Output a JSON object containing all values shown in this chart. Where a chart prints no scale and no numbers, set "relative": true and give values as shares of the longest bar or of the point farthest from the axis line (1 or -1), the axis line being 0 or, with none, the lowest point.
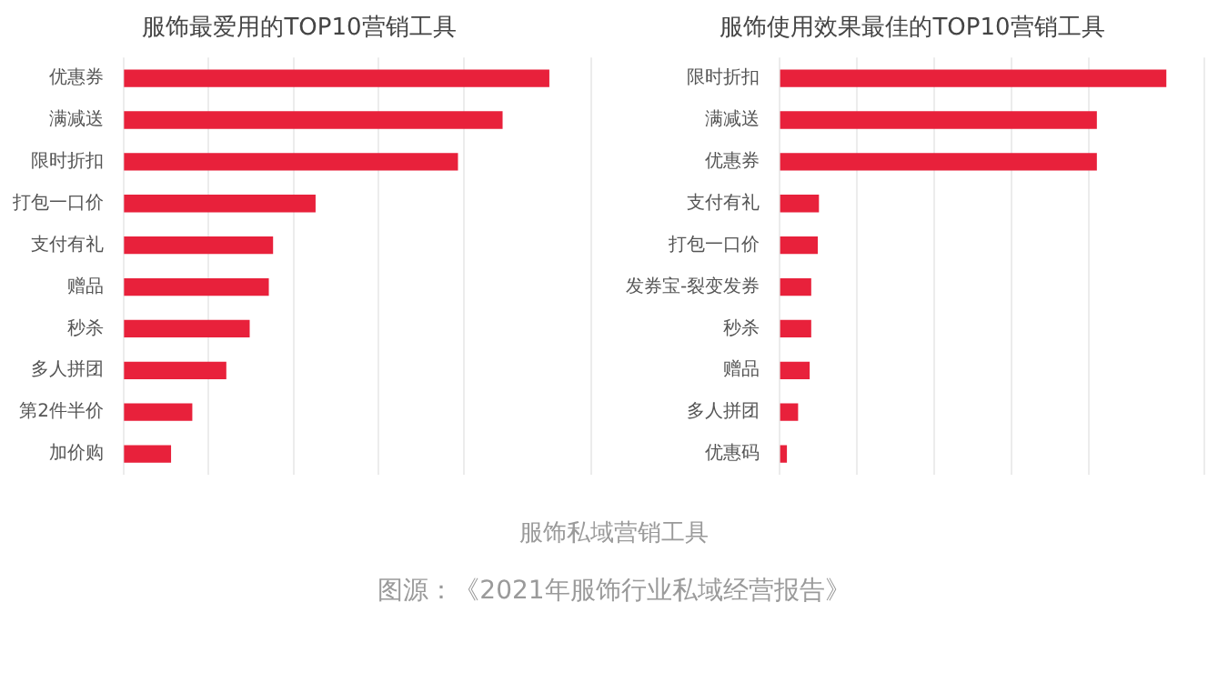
{
  "chart_data": [
    {
      "type": "bar",
      "orientation": "horizontal",
      "relative": true,
      "grid": "x",
      "title": "服饰最爱用的TOP10营销工具",
      "categories": [
        "优惠券",
        "满减送",
        "限时折扣",
        "打包一口价",
        "支付有礼",
        "赠品",
        "秒杀",
        "多人拼团",
        "第2件半价",
        "加价购"
      ],
      "values": [
        1,
        0.89,
        0.785,
        0.45,
        0.35,
        0.34,
        0.295,
        0.24,
        0.16,
        0.11
      ],
      "color": "#e8213b",
      "annotations": [
        "服饰私域营销工具",
        "图源：《2021年服饰行业私域经营报告》"
      ]
    },
    {
      "type": "bar",
      "orientation": "horizontal",
      "relative": true,
      "grid": "x",
      "title": "服饰使用效果最佳的TOP10营销工具",
      "categories": [
        "限时折扣",
        "满减送",
        "优惠券",
        "支付有礼",
        "打包一口价",
        "发券宝-裂变发券",
        "秒杀",
        "赠品",
        "多人拼团",
        "优惠码"
      ],
      "values": [
        1,
        0.82,
        0.82,
        0.1,
        0.097,
        0.08,
        0.08,
        0.076,
        0.046,
        0.017
      ],
      "color": "#e8213b"
    }
  ]
}
